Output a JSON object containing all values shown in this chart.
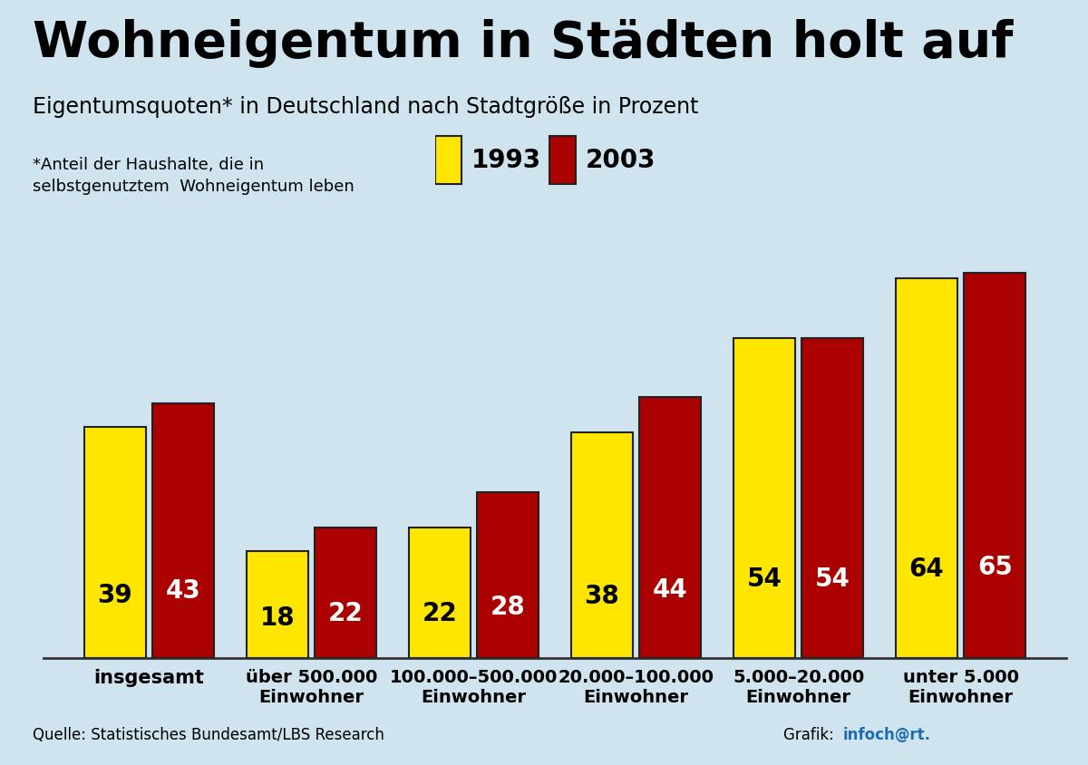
{
  "title": "Wohneigentum in Städten holt auf",
  "subtitle": "Eigentumsquoten* in Deutschland nach Stadtgröße in Prozent",
  "footnote": "*Anteil der Haushalte, die in\nselbstgenutztem  Wohneigentum leben",
  "source": "Quelle: Statistisches Bundesamt/LBS Research",
  "grafik_prefix": "Grafik: ",
  "grafik_colored": "infoch@rt.",
  "grafik_color": "#1E6BB0",
  "categories": [
    "insgesamt",
    "über 500.000\nEinwohner",
    "100.000–500.000\nEinwohner",
    "20.000–100.000\nEinwohner",
    "5.000–20.000\nEinwohner",
    "unter 5.000\nEinwohner"
  ],
  "values_1993": [
    39,
    18,
    22,
    38,
    54,
    64
  ],
  "values_2003": [
    43,
    22,
    28,
    44,
    54,
    65
  ],
  "color_1993": "#FFE600",
  "color_2003": "#AA0000",
  "background_color": "#D0E4F0",
  "bar_border_color": "#222222",
  "legend_1993": "1993",
  "legend_2003": "2003",
  "ylim": [
    0,
    75
  ],
  "bar_width": 0.38,
  "title_fontsize": 40,
  "subtitle_fontsize": 17,
  "footnote_fontsize": 13,
  "label_fontsize": 20,
  "xtick_fontsize": 14,
  "source_fontsize": 12
}
